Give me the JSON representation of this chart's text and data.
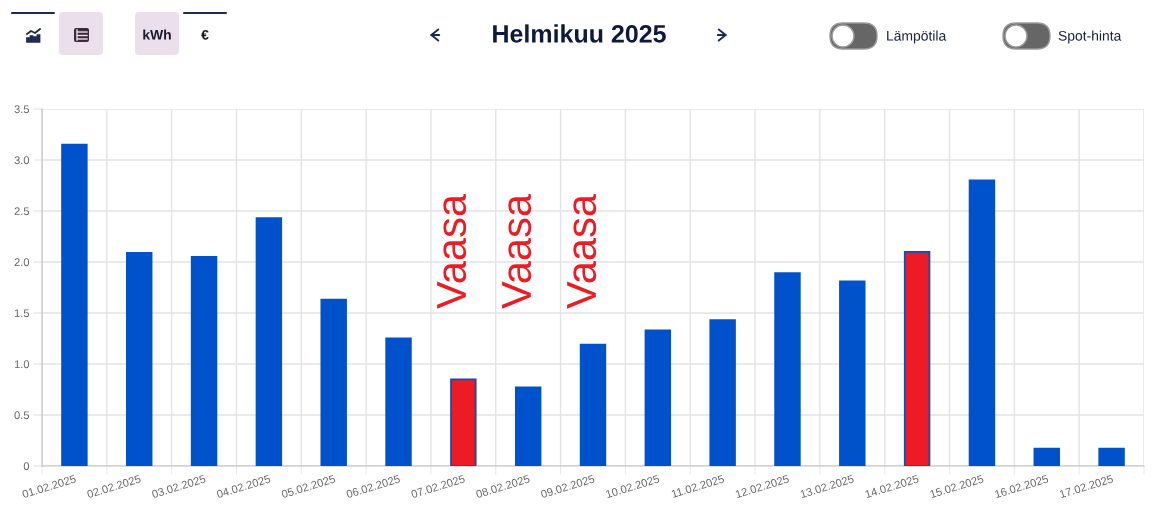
{
  "chart_data": {
    "type": "bar",
    "title": "Helmikuu 2025",
    "categories": [
      "01.02.2025",
      "02.02.2025",
      "03.02.2025",
      "04.02.2025",
      "05.02.2025",
      "06.02.2025",
      "07.02.2025",
      "08.02.2025",
      "09.02.2025",
      "10.02.2025",
      "11.02.2025",
      "12.02.2025",
      "13.02.2025",
      "14.02.2025",
      "15.02.2025",
      "16.02.2025",
      "17.02.2025"
    ],
    "values": [
      3.15,
      2.09,
      2.05,
      2.43,
      1.63,
      1.25,
      0.85,
      0.77,
      1.19,
      1.33,
      1.43,
      1.89,
      1.81,
      2.1,
      2.8,
      0.17,
      0.17
    ],
    "color": "#0052cc",
    "colors": [
      "#0052cc",
      "#0052cc",
      "#0052cc",
      "#0052cc",
      "#0052cc",
      "#0052cc",
      "#ed1c24",
      "#0052cc",
      "#0052cc",
      "#0052cc",
      "#0052cc",
      "#0052cc",
      "#0052cc",
      "#ed1c24",
      "#0052cc",
      "#0052cc",
      "#0052cc"
    ],
    "ylim": [
      0,
      3.5
    ],
    "yticks": [
      0,
      0.5,
      {
        "value": 1,
        "label": "1.0"
      },
      1.5,
      {
        "value": 2,
        "label": "2.0"
      },
      2.5,
      {
        "value": 3,
        "label": "3.0"
      },
      3.5
    ],
    "grid": true,
    "annotations": [
      "kWh",
      "€",
      "Lämpötila",
      "Spot-hinta",
      "Vaasa",
      "Vaasa",
      "Vaasa"
    ]
  }
}
